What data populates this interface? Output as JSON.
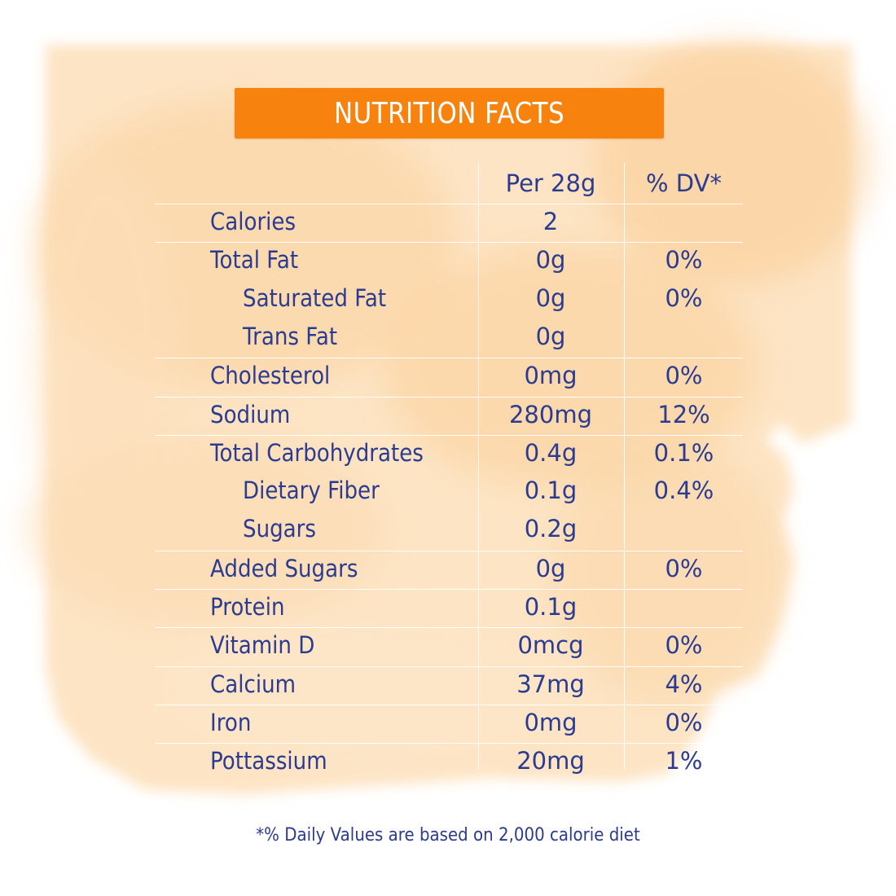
{
  "title": "NUTRITION FACTS",
  "colors": {
    "banner": "#f7820e",
    "text": "#2b3b8f",
    "wash": "#fbd7a8"
  },
  "columns": {
    "per_serving": "Per 28g",
    "daily_value": "% DV*"
  },
  "rows": [
    {
      "name": "Calories",
      "value": "2",
      "dv": "",
      "indent": false,
      "sep": true
    },
    {
      "name": "Total Fat",
      "value": "0g",
      "dv": "0%",
      "indent": false,
      "sep": true
    },
    {
      "name": "Saturated Fat",
      "value": "0g",
      "dv": "0%",
      "indent": true,
      "sep": false
    },
    {
      "name": "Trans Fat",
      "value": "0g",
      "dv": "",
      "indent": true,
      "sep": false
    },
    {
      "name": "Cholesterol",
      "value": "0mg",
      "dv": "0%",
      "indent": false,
      "sep": true
    },
    {
      "name": "Sodium",
      "value": "280mg",
      "dv": "12%",
      "indent": false,
      "sep": true
    },
    {
      "name": "Total Carbohydrates",
      "value": "0.4g",
      "dv": "0.1%",
      "indent": false,
      "sep": true
    },
    {
      "name": "Dietary Fiber",
      "value": "0.1g",
      "dv": "0.4%",
      "indent": true,
      "sep": false
    },
    {
      "name": "Sugars",
      "value": "0.2g",
      "dv": "",
      "indent": true,
      "sep": false
    },
    {
      "name": "Added Sugars",
      "value": "0g",
      "dv": "0%",
      "indent": false,
      "sep": true
    },
    {
      "name": "Protein",
      "value": "0.1g",
      "dv": "",
      "indent": false,
      "sep": true
    },
    {
      "name": "Vitamin D",
      "value": "0mcg",
      "dv": "0%",
      "indent": false,
      "sep": true
    },
    {
      "name": "Calcium",
      "value": "37mg",
      "dv": "4%",
      "indent": false,
      "sep": true
    },
    {
      "name": "Iron",
      "value": "0mg",
      "dv": "0%",
      "indent": false,
      "sep": true
    },
    {
      "name": "Pottassium",
      "value": "20mg",
      "dv": "1%",
      "indent": false,
      "sep": true
    }
  ],
  "footnote": "*% Daily Values are based on 2,000 calorie diet"
}
